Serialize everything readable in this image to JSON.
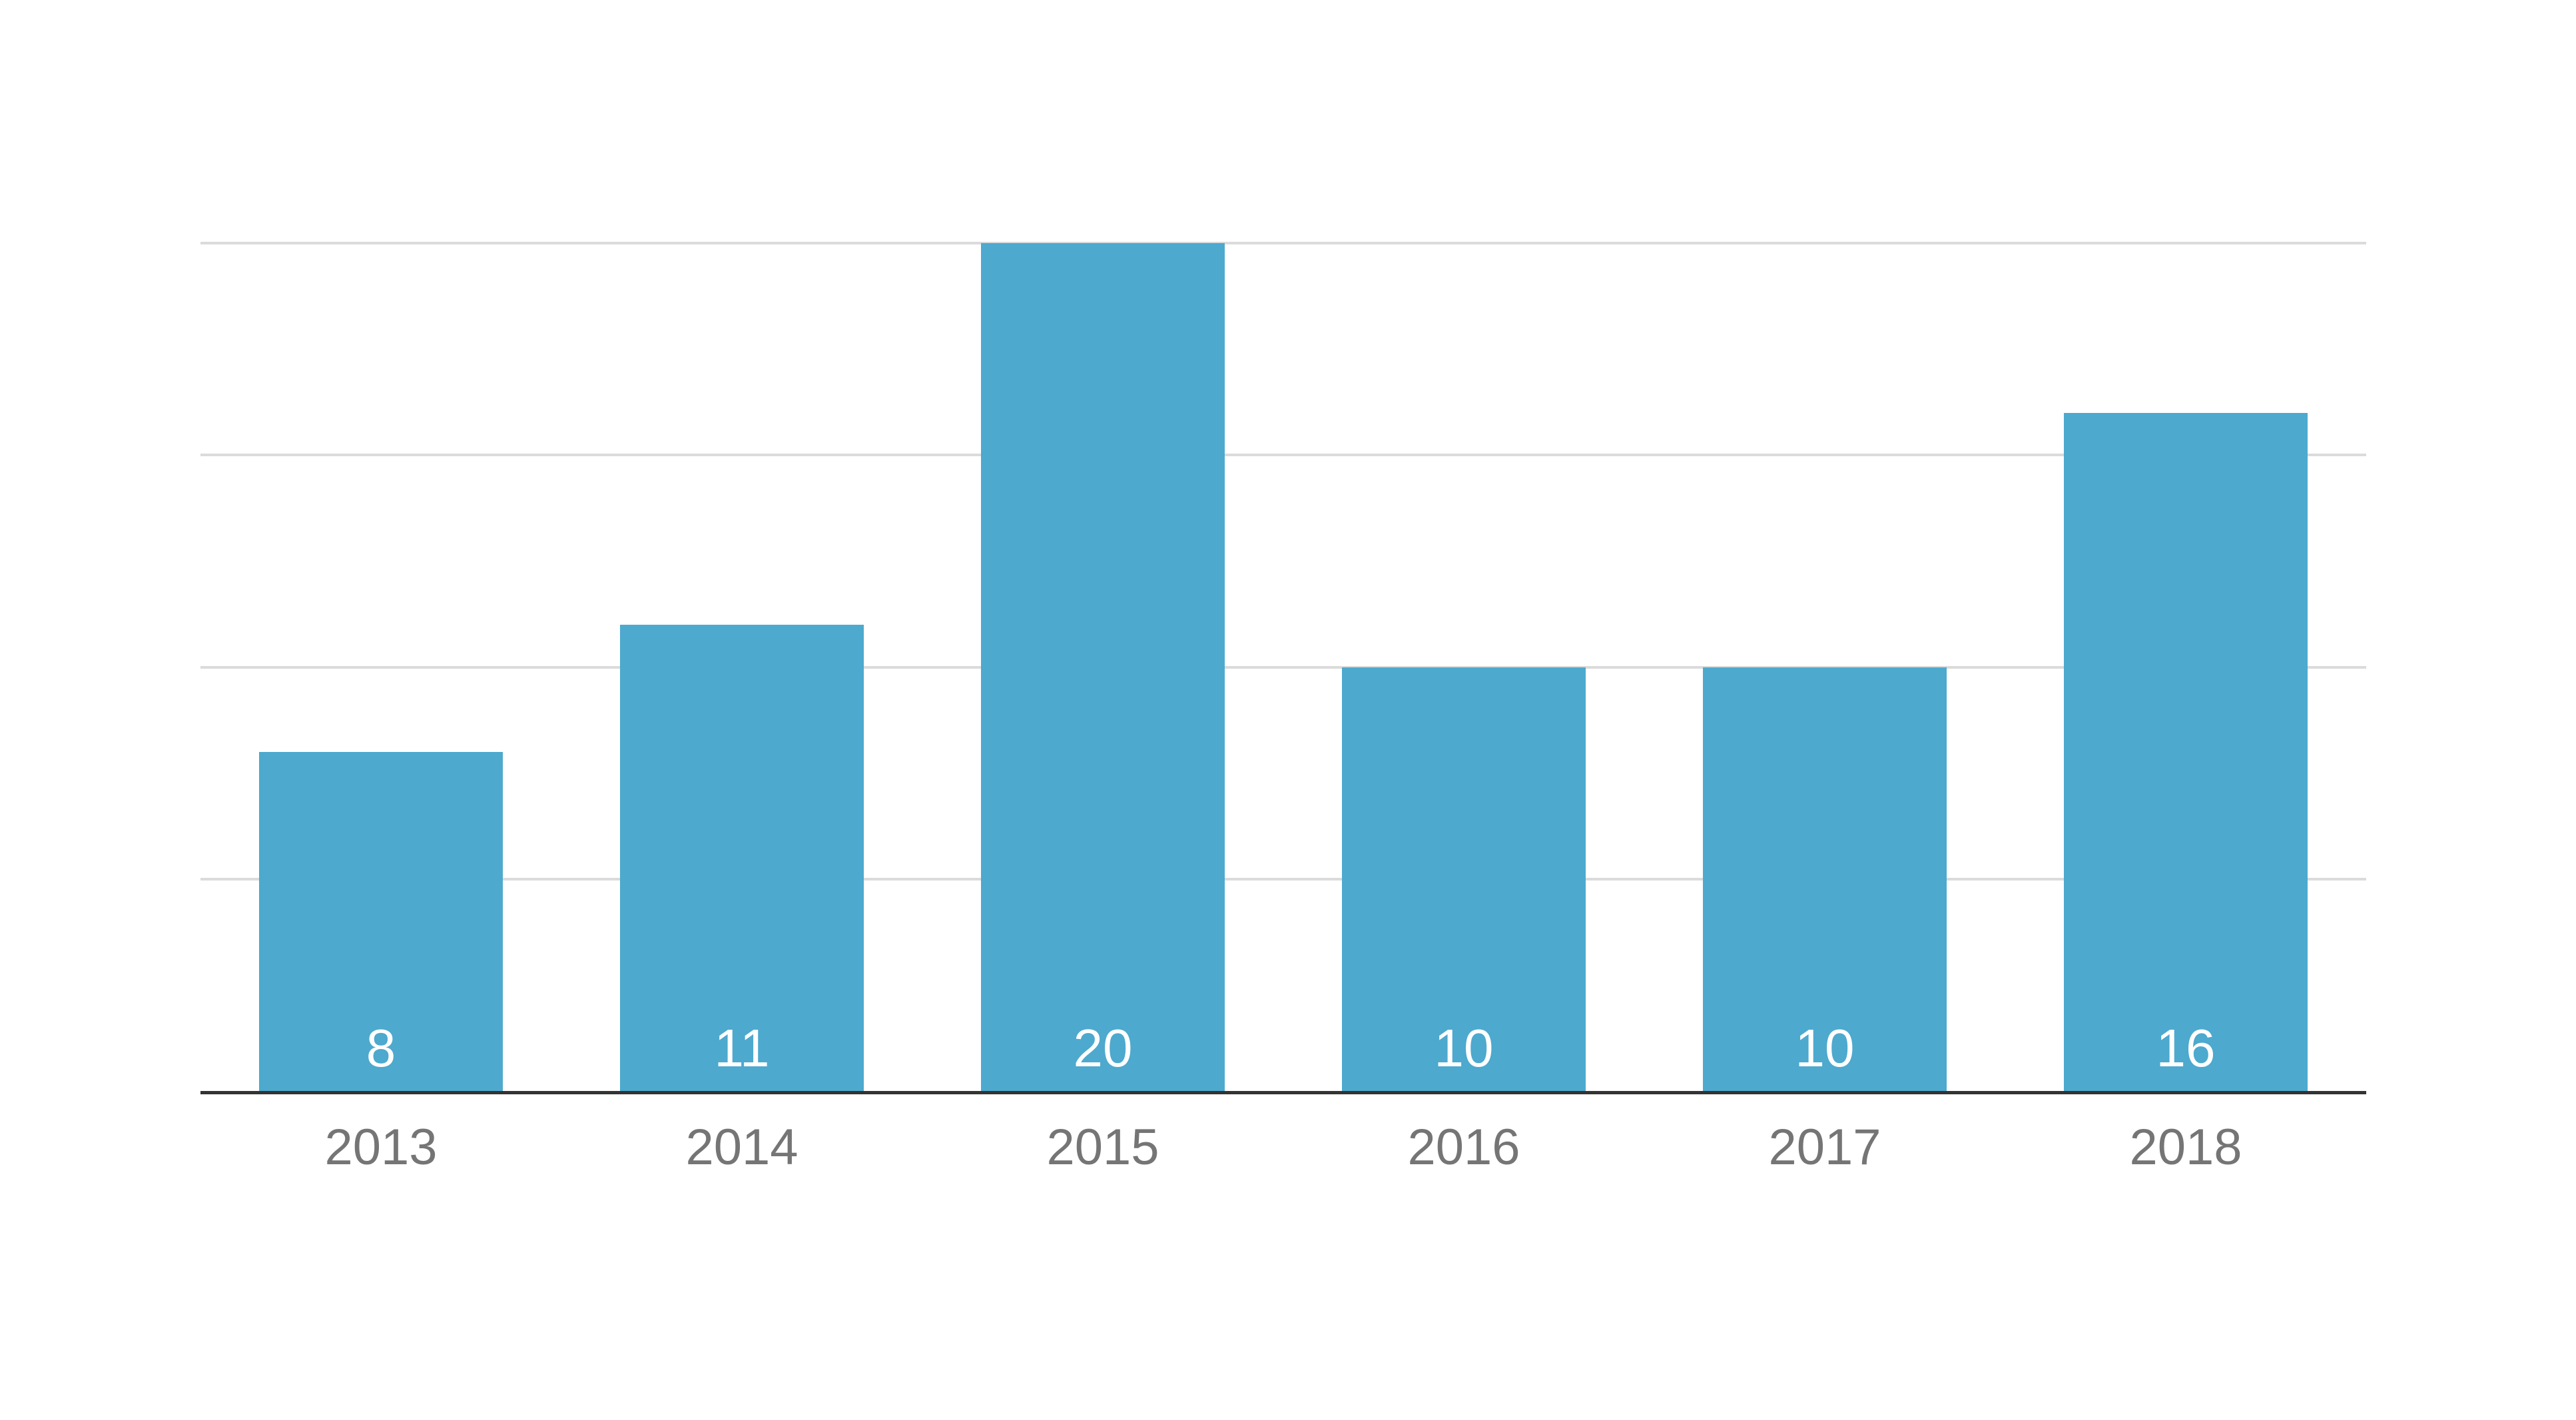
{
  "chart_data": {
    "type": "bar",
    "title": "",
    "xlabel": "",
    "ylabel": "",
    "categories": [
      "2013",
      "2014",
      "2015",
      "2016",
      "2017",
      "2018"
    ],
    "values": [
      8,
      11,
      20,
      10,
      10,
      16
    ],
    "value_labels": [
      "8",
      "11",
      "20",
      "10",
      "10",
      "16"
    ],
    "ylim": [
      0,
      20
    ],
    "gridline_values": [
      5,
      10,
      15,
      20
    ],
    "grid": true,
    "legend": "none",
    "y_axis_labels_visible": false,
    "colors": {
      "bar": "#4DA9CE",
      "gridline": "#DBDBDB",
      "baseline": "#333333",
      "value_label": "#FFFFFF",
      "category_label": "#757575",
      "background": "#FFFFFF"
    }
  }
}
